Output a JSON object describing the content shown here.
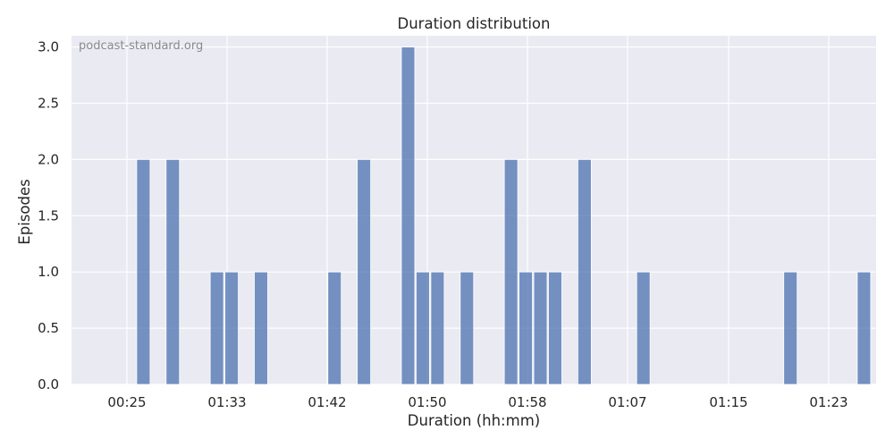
{
  "chart_data": {
    "type": "bar",
    "title": "Duration distribution",
    "xlabel": "Duration (hh:mm)",
    "ylabel": "Episodes",
    "watermark": "podcast-standard.org",
    "ylim": [
      0,
      3.1
    ],
    "yticks": [
      0.0,
      0.5,
      1.0,
      1.5,
      2.0,
      2.5,
      3.0
    ],
    "ytick_labels": [
      "0.0",
      "0.5",
      "1.0",
      "1.5",
      "2.0",
      "2.5",
      "3.0"
    ],
    "xticks": [
      "00:25",
      "01:33",
      "01:42",
      "01:50",
      "01:58",
      "01:07",
      "01:15",
      "01:23"
    ],
    "x_bins_total": 52,
    "bins": [
      {
        "index": 2,
        "value": 2
      },
      {
        "index": 4,
        "value": 2
      },
      {
        "index": 7,
        "value": 1
      },
      {
        "index": 8,
        "value": 1
      },
      {
        "index": 10,
        "value": 1
      },
      {
        "index": 15,
        "value": 1
      },
      {
        "index": 17,
        "value": 2
      },
      {
        "index": 20,
        "value": 3
      },
      {
        "index": 21,
        "value": 1
      },
      {
        "index": 22,
        "value": 1
      },
      {
        "index": 24,
        "value": 1
      },
      {
        "index": 27,
        "value": 2
      },
      {
        "index": 28,
        "value": 1
      },
      {
        "index": 29,
        "value": 1
      },
      {
        "index": 30,
        "value": 1
      },
      {
        "index": 32,
        "value": 2
      },
      {
        "index": 36,
        "value": 1
      },
      {
        "index": 46,
        "value": 1
      },
      {
        "index": 51,
        "value": 1
      }
    ],
    "bar_color": "#4c72b0",
    "background_color": "#eaeaf2",
    "grid": true,
    "legend": false
  }
}
